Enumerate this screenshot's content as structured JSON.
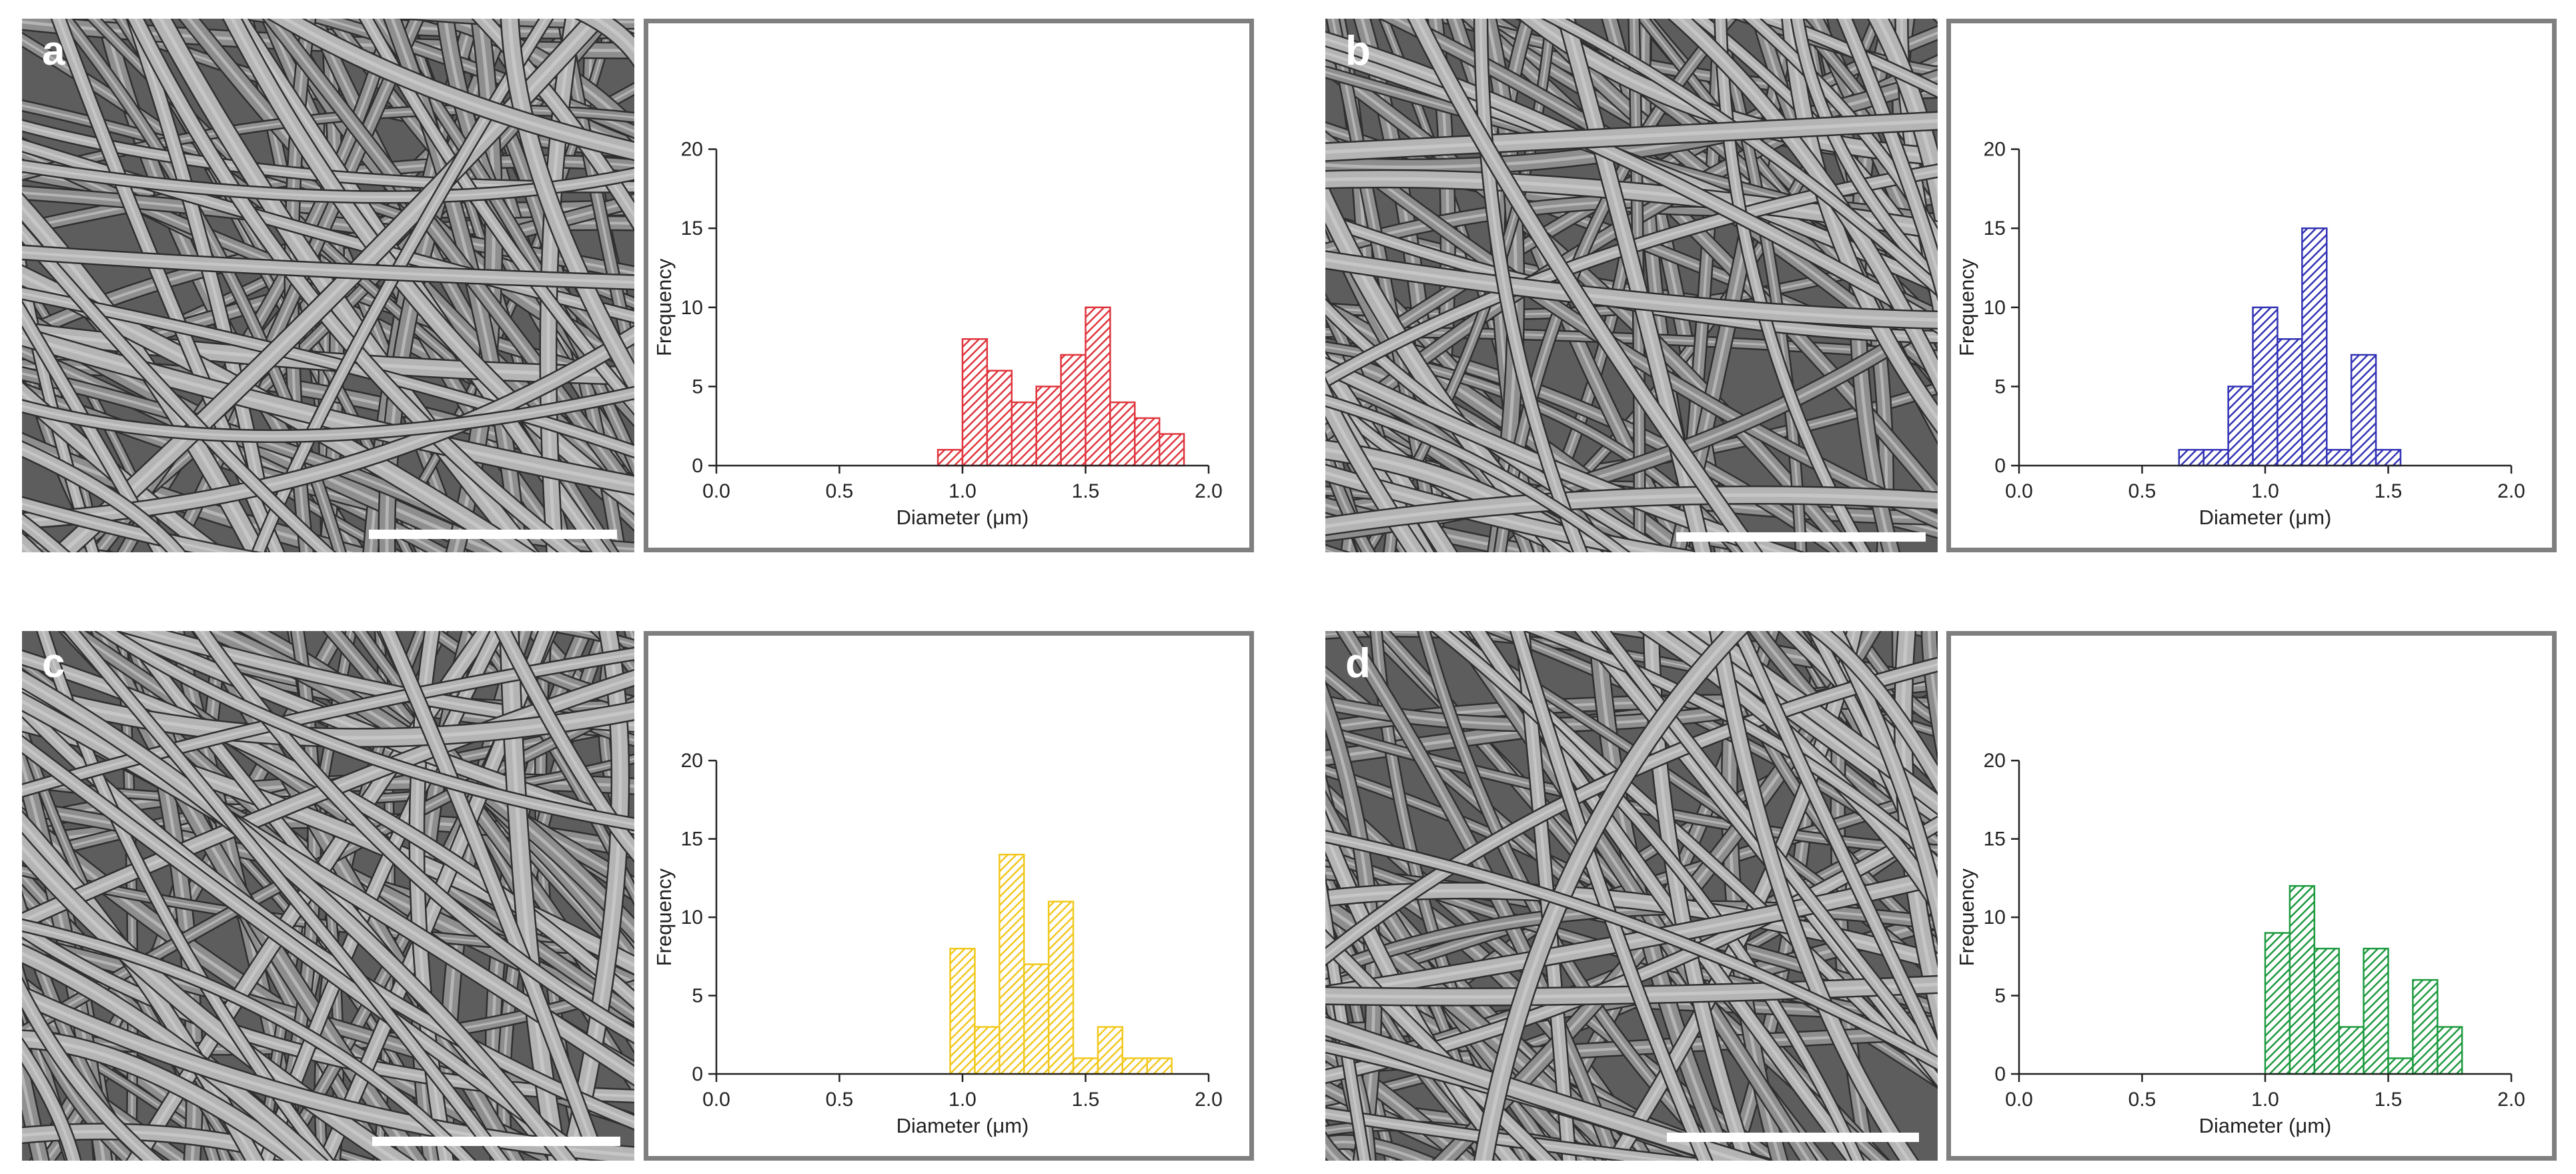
{
  "figure": {
    "panels": [
      {
        "letter": "a",
        "hist_color": "#e0353d"
      },
      {
        "letter": "b",
        "hist_color": "#3333b5"
      },
      {
        "letter": "c",
        "hist_color": "#f2c81d"
      },
      {
        "letter": "d",
        "hist_color": "#1d9a3f"
      }
    ]
  },
  "chart_data": [
    {
      "type": "bar",
      "panel": "a",
      "xlabel": "Diameter (μm)",
      "ylabel": "Frequency",
      "xlim": [
        0.0,
        2.0
      ],
      "ylim": [
        0,
        20
      ],
      "xticks": [
        "0.0",
        "0.5",
        "1.0",
        "1.5",
        "2.0"
      ],
      "yticks": [
        "0",
        "5",
        "10",
        "15",
        "20"
      ],
      "bin_width": 0.1,
      "bin_centers": [
        0.95,
        1.05,
        1.15,
        1.25,
        1.35,
        1.45,
        1.55,
        1.65,
        1.75,
        1.85
      ],
      "values": [
        1,
        8,
        6,
        4,
        5,
        7,
        10,
        4,
        3,
        2
      ],
      "color": "#e0353d"
    },
    {
      "type": "bar",
      "panel": "b",
      "xlabel": "Diameter (μm)",
      "ylabel": "Frequency",
      "xlim": [
        0.0,
        2.0
      ],
      "ylim": [
        0,
        20
      ],
      "xticks": [
        "0.0",
        "0.5",
        "1.0",
        "1.5",
        "2.0"
      ],
      "yticks": [
        "0",
        "5",
        "10",
        "15",
        "20"
      ],
      "bin_width": 0.1,
      "bin_centers": [
        0.7,
        0.8,
        0.9,
        1.0,
        1.1,
        1.2,
        1.3,
        1.4,
        1.5
      ],
      "values": [
        1,
        1,
        5,
        10,
        8,
        15,
        1,
        7,
        1
      ],
      "color": "#3333b5"
    },
    {
      "type": "bar",
      "panel": "c",
      "xlabel": "Diameter (μm)",
      "ylabel": "Frequency",
      "xlim": [
        0.0,
        2.0
      ],
      "ylim": [
        0,
        20
      ],
      "xticks": [
        "0.0",
        "0.5",
        "1.0",
        "1.5",
        "2.0"
      ],
      "yticks": [
        "0",
        "5",
        "10",
        "15",
        "20"
      ],
      "bin_width": 0.1,
      "bin_centers": [
        1.0,
        1.1,
        1.2,
        1.3,
        1.4,
        1.5,
        1.6,
        1.7,
        1.8
      ],
      "values": [
        8,
        3,
        14,
        7,
        11,
        1,
        3,
        1,
        1
      ],
      "color": "#f2c81d"
    },
    {
      "type": "bar",
      "panel": "d",
      "xlabel": "Diameter (μm)",
      "ylabel": "Frequency",
      "xlim": [
        0.0,
        2.0
      ],
      "ylim": [
        0,
        20
      ],
      "xticks": [
        "0.0",
        "0.5",
        "1.0",
        "1.5",
        "2.0"
      ],
      "yticks": [
        "0",
        "5",
        "10",
        "15",
        "20"
      ],
      "bin_width": 0.1,
      "bin_centers": [
        1.05,
        1.15,
        1.25,
        1.35,
        1.45,
        1.55,
        1.65,
        1.75
      ],
      "values": [
        9,
        12,
        8,
        3,
        8,
        1,
        6,
        3
      ],
      "color": "#1d9a3f"
    }
  ]
}
